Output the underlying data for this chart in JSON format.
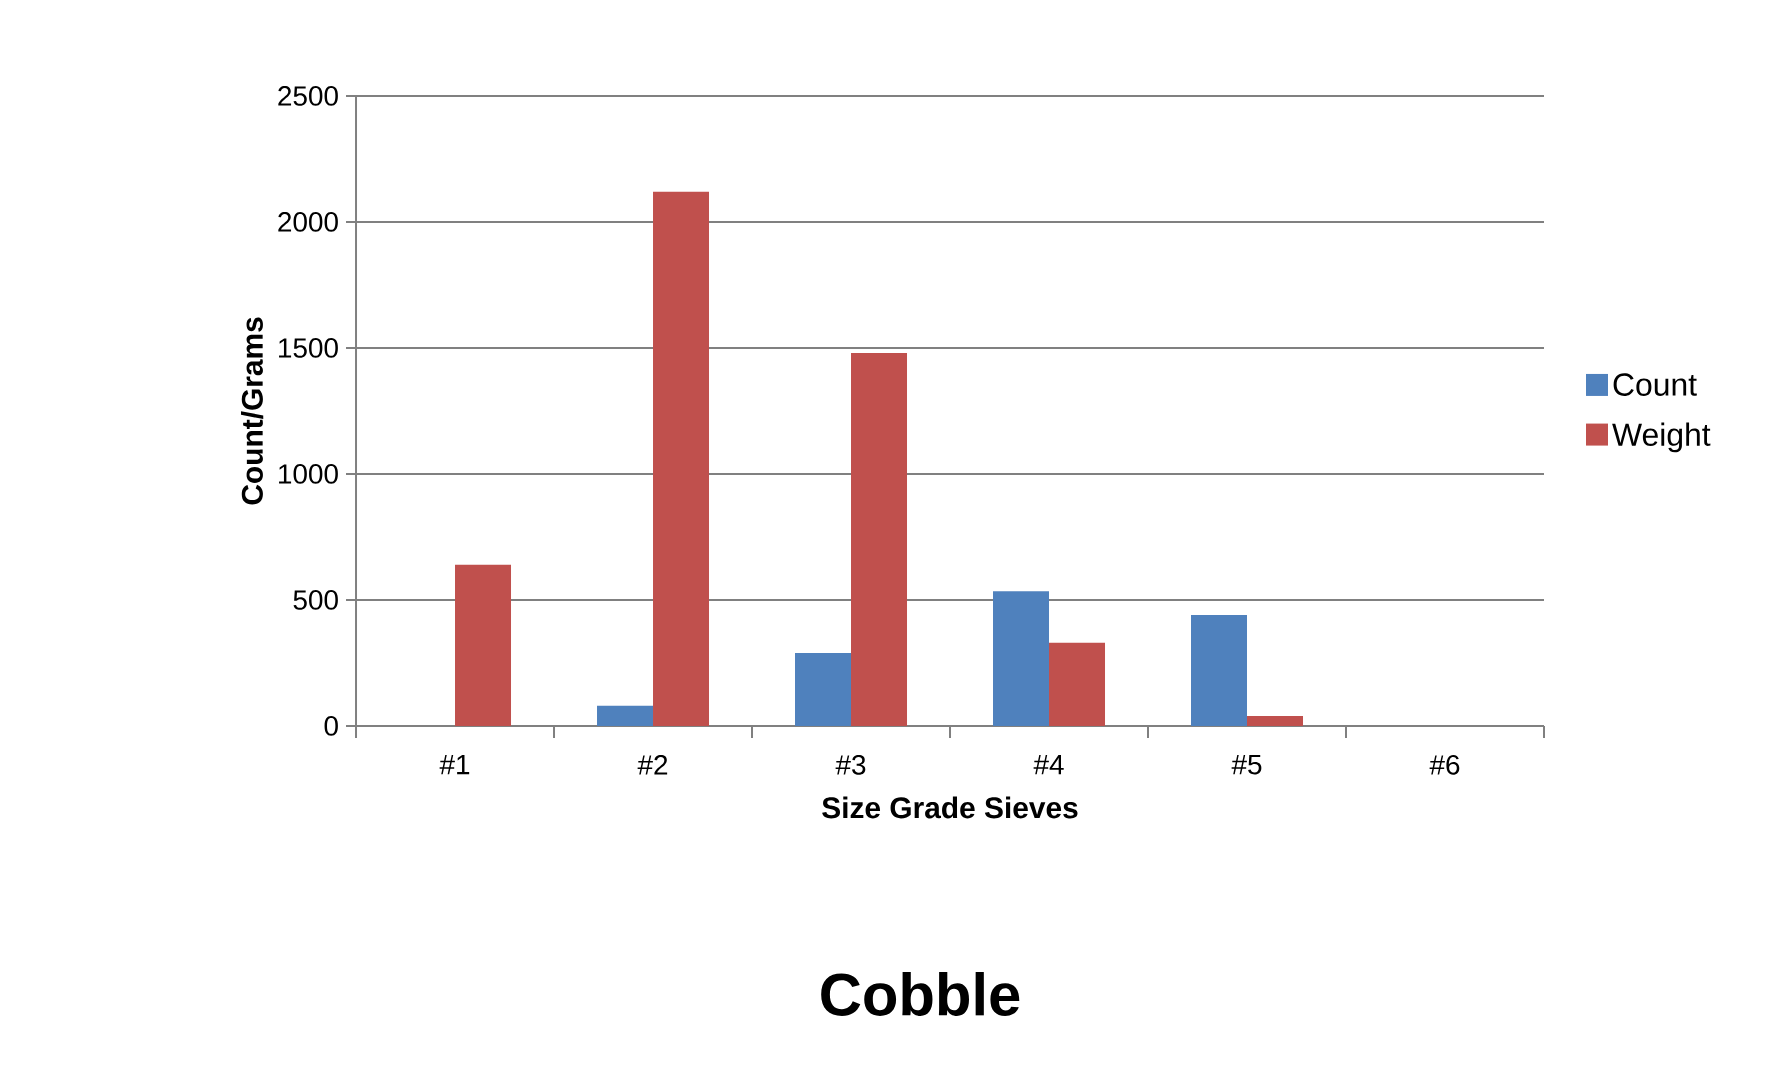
{
  "chart_data": {
    "type": "bar",
    "title": "Cobble",
    "xlabel": "Size Grade Sieves",
    "ylabel": "Count/Grams",
    "categories": [
      "#1",
      "#2",
      "#3",
      "#4",
      "#5",
      "#6"
    ],
    "series": [
      {
        "name": "Count",
        "color": "#4f81bd",
        "values": [
          0,
          80,
          290,
          535,
          440,
          0
        ]
      },
      {
        "name": "Weight",
        "color": "#c0504d",
        "values": [
          640,
          2120,
          1480,
          330,
          40,
          0
        ]
      }
    ],
    "ylim": [
      0,
      2500
    ],
    "yticks": [
      0,
      500,
      1000,
      1500,
      2000,
      2500
    ],
    "grid": "y",
    "legend": "right"
  }
}
